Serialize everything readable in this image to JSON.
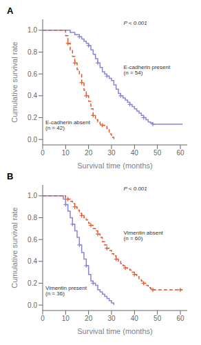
{
  "chart_data": [
    {
      "type": "step",
      "title": "A",
      "xlabel": "Survival time (months)",
      "ylabel": "Cumulative survival rate",
      "xlim": [
        0,
        63
      ],
      "ylim": [
        -0.05,
        1.1
      ],
      "xticks": [
        0,
        10,
        20,
        30,
        40,
        50,
        60
      ],
      "yticks": [
        {
          "value": 0.0,
          "label": "0.0"
        },
        0.2,
        0.4,
        0.6,
        0.8,
        {
          "value": 1.0,
          "label": "1.0"
        }
      ],
      "grid": false,
      "annotations": [
        "P < 0.001"
      ],
      "series": [
        {
          "name": "E-cadherin present\n(n = 54)",
          "color": "#8884d8",
          "line_style": "solid",
          "marker": "plus",
          "x": [
            0,
            10,
            12,
            14,
            16,
            17,
            18,
            19,
            20,
            21,
            22,
            23,
            24,
            25,
            26,
            27,
            28,
            29,
            30,
            31,
            32,
            33,
            34,
            35,
            36,
            37,
            38,
            39,
            40,
            41,
            42,
            43,
            44,
            45,
            46,
            47,
            48,
            61
          ],
          "values": [
            1.0,
            1.0,
            0.98,
            0.96,
            0.94,
            0.92,
            0.9,
            0.88,
            0.86,
            0.82,
            0.78,
            0.74,
            0.7,
            0.66,
            0.62,
            0.6,
            0.58,
            0.56,
            0.54,
            0.5,
            0.46,
            0.42,
            0.4,
            0.38,
            0.36,
            0.34,
            0.32,
            0.3,
            0.28,
            0.26,
            0.24,
            0.22,
            0.2,
            0.18,
            0.16,
            0.15,
            0.14,
            0.14
          ],
          "censors": {
            "x": [
              16,
              20,
              24,
              28,
              34,
              38,
              44,
              48
            ],
            "y": [
              0.94,
              0.86,
              0.7,
              0.58,
              0.4,
              0.32,
              0.2,
              0.14
            ]
          }
        },
        {
          "name": "E-cadherin absent\n(n = 42)",
          "color": "#e4572e",
          "line_style": "dashed",
          "marker": "plus",
          "x": [
            0,
            9,
            10,
            11,
            12,
            13,
            14,
            15,
            16,
            17,
            18,
            19,
            20,
            21,
            22,
            23,
            24,
            25,
            26,
            27,
            28,
            29,
            30,
            31
          ],
          "values": [
            1.0,
            1.0,
            0.95,
            0.88,
            0.82,
            0.76,
            0.7,
            0.64,
            0.6,
            0.52,
            0.45,
            0.4,
            0.35,
            0.28,
            0.22,
            0.18,
            0.16,
            0.14,
            0.13,
            0.12,
            0.1,
            0.05,
            0.02,
            0.0
          ],
          "censors": {
            "x": [
              11,
              14,
              17,
              19,
              22,
              26
            ],
            "y": [
              0.88,
              0.7,
              0.52,
              0.4,
              0.22,
              0.13
            ]
          }
        }
      ]
    },
    {
      "type": "step",
      "title": "B",
      "xlabel": "Survival time (months)",
      "ylabel": "Cumulative survival rate",
      "xlim": [
        0,
        63
      ],
      "ylim": [
        -0.05,
        1.1
      ],
      "xticks": [
        0,
        10,
        20,
        30,
        40,
        50,
        60
      ],
      "yticks": [
        {
          "value": 0.0,
          "label": "0.0"
        },
        0.2,
        0.4,
        0.6,
        0.8,
        {
          "value": 1.0,
          "label": "1.0"
        }
      ],
      "grid": false,
      "annotations": [
        "P < 0.001"
      ],
      "series": [
        {
          "name": "Vimentin present\n(n = 36)",
          "color": "#8884d8",
          "line_style": "solid",
          "marker": "plus",
          "x": [
            0,
            8,
            9,
            10,
            11,
            12,
            13,
            14,
            15,
            16,
            17,
            18,
            19,
            20,
            21,
            22,
            23,
            24,
            25,
            26,
            27,
            28,
            29,
            30,
            31
          ],
          "values": [
            1.0,
            1.0,
            0.97,
            0.92,
            0.86,
            0.8,
            0.74,
            0.68,
            0.62,
            0.55,
            0.48,
            0.42,
            0.36,
            0.28,
            0.22,
            0.2,
            0.18,
            0.14,
            0.12,
            0.1,
            0.08,
            0.06,
            0.04,
            0.02,
            0.0
          ],
          "censors": {
            "x": [
              10,
              13,
              16,
              19,
              22
            ],
            "y": [
              0.92,
              0.74,
              0.55,
              0.36,
              0.2
            ]
          }
        },
        {
          "name": "Vimentin absent\n(n = 60)",
          "color": "#e4572e",
          "line_style": "dashed",
          "marker": "plus",
          "x": [
            0,
            9,
            10,
            11,
            12,
            13,
            14,
            15,
            16,
            17,
            18,
            19,
            20,
            21,
            22,
            23,
            24,
            25,
            26,
            27,
            28,
            29,
            30,
            31,
            32,
            33,
            34,
            35,
            36,
            37,
            38,
            39,
            40,
            41,
            42,
            43,
            44,
            45,
            46,
            47,
            48,
            61
          ],
          "values": [
            1.0,
            1.0,
            0.98,
            0.97,
            0.95,
            0.93,
            0.9,
            0.87,
            0.84,
            0.82,
            0.8,
            0.78,
            0.75,
            0.73,
            0.7,
            0.68,
            0.65,
            0.62,
            0.58,
            0.55,
            0.52,
            0.5,
            0.47,
            0.45,
            0.42,
            0.4,
            0.38,
            0.36,
            0.34,
            0.33,
            0.32,
            0.3,
            0.28,
            0.26,
            0.24,
            0.22,
            0.2,
            0.18,
            0.16,
            0.15,
            0.14,
            0.14
          ],
          "censors": {
            "x": [
              11,
              14,
              17,
              21,
              24,
              28,
              32,
              36,
              40,
              44,
              48,
              60
            ],
            "y": [
              0.97,
              0.9,
              0.82,
              0.73,
              0.65,
              0.52,
              0.42,
              0.34,
              0.28,
              0.2,
              0.14,
              0.14
            ]
          }
        }
      ]
    }
  ]
}
